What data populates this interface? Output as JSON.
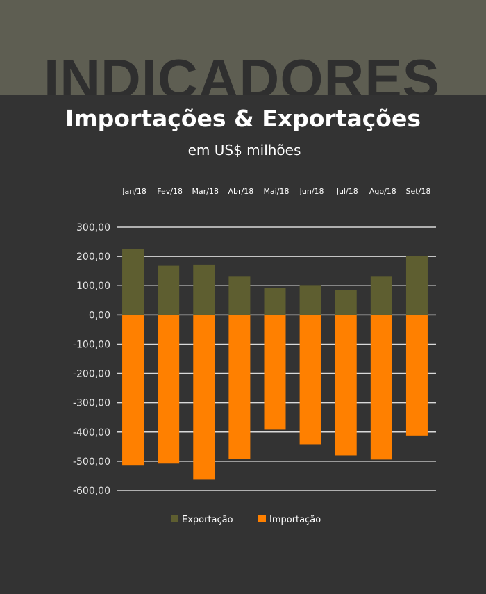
{
  "banner": {
    "text": "INDICADORES"
  },
  "colors": {
    "background": "#333333",
    "top_band": "#5e5e52",
    "banner_text": "#2f2f2f",
    "export": "#5e5e30",
    "import": "#ff8000",
    "gridline": "#d9d9d9"
  },
  "chart_data": {
    "type": "bar",
    "stacking": "diverging",
    "title": "Importações & Exportações",
    "subtitle": "em US$ milhões",
    "categories": [
      "Jan/18",
      "Fev/18",
      "Mar/18",
      "Abr/18",
      "Mai/18",
      "Jun/18",
      "Jul/18",
      "Ago/18",
      "Set/18"
    ],
    "category_axis_position": "top",
    "series": [
      {
        "name": "Exportação",
        "color": "#5e5e30",
        "values": [
          225,
          168,
          172,
          133,
          92,
          102,
          86,
          133,
          201
        ]
      },
      {
        "name": "Importação",
        "color": "#ff8000",
        "values": [
          -515,
          -508,
          -563,
          -493,
          -392,
          -442,
          -480,
          -494,
          -412
        ]
      }
    ],
    "ylim": [
      -600,
      300
    ],
    "yticks": [
      300,
      200,
      100,
      0,
      -100,
      -200,
      -300,
      -400,
      -500,
      -600
    ],
    "ytick_labels": [
      "300,00",
      "200,00",
      "100,00",
      "0,00",
      "-100,00",
      "-200,00",
      "-300,00",
      "-400,00",
      "-500,00",
      "-600,00"
    ],
    "grid": true,
    "legend_position": "bottom",
    "xlabel": "",
    "ylabel": ""
  }
}
